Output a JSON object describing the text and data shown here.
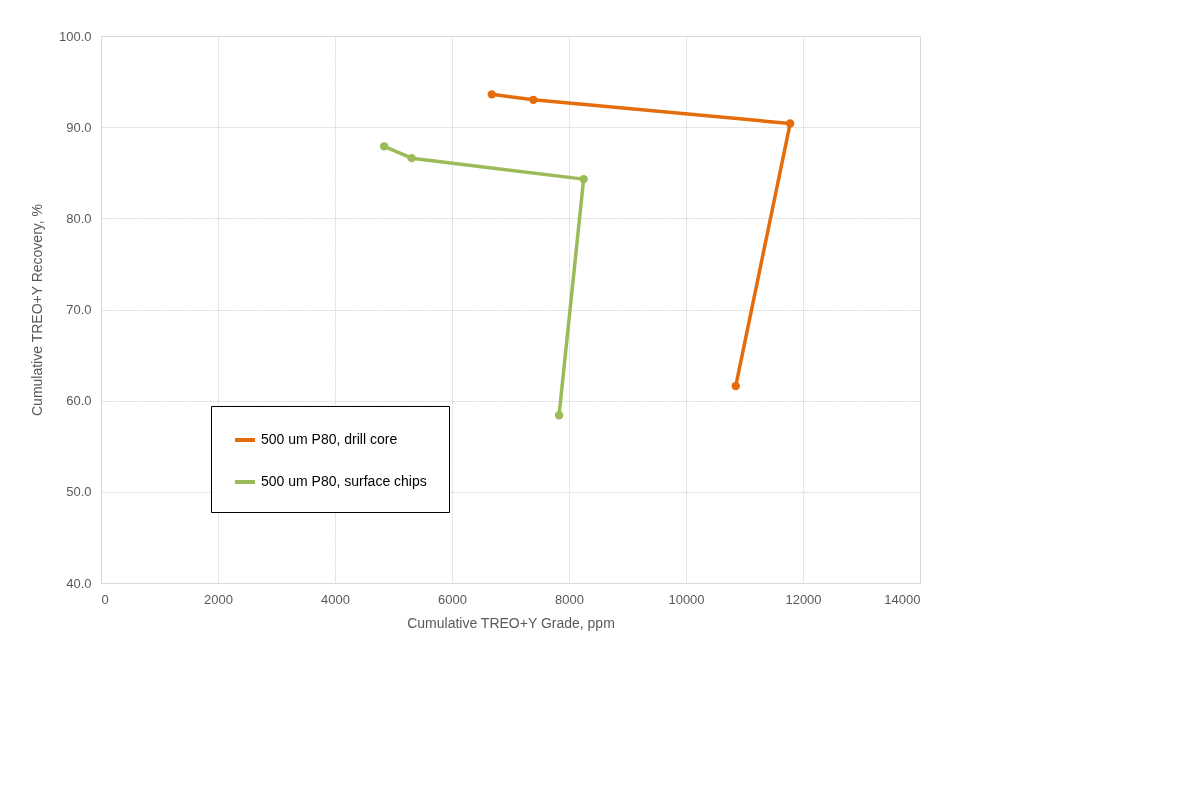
{
  "chart_data": {
    "type": "line",
    "xlabel": "Cumulative TREO+Y  Grade, ppm",
    "ylabel": "Cumulative TREO+Y  Recovery, %",
    "series": [
      {
        "name": "500 um P80, drill core",
        "color": "#e46c0a",
        "x": [
          6680,
          7390,
          11780,
          10850
        ],
        "values": [
          93.6,
          93.0,
          90.4,
          61.6
        ]
      },
      {
        "name": "500 um P80, surface chips",
        "color": "#9bbb59",
        "x": [
          4840,
          5310,
          8250,
          7830
        ],
        "values": [
          87.9,
          86.6,
          84.3,
          58.4
        ]
      }
    ],
    "xlim": [
      0,
      14000
    ],
    "xticks": [
      0,
      2000,
      4000,
      6000,
      8000,
      10000,
      12000,
      14000
    ],
    "ylim": [
      40,
      100
    ],
    "yticks": [
      {
        "value": 40,
        "label": "40.0"
      },
      {
        "value": 50,
        "label": "50.0"
      },
      {
        "value": 60,
        "label": "60.0"
      },
      {
        "value": 70,
        "label": "70.0"
      },
      {
        "value": 80,
        "label": "80.0"
      },
      {
        "value": 90,
        "label": "90.0"
      },
      {
        "value": 100,
        "label": "100.0"
      }
    ],
    "grid": true,
    "legend": "left",
    "marker": "circle",
    "line_style": "solid"
  }
}
